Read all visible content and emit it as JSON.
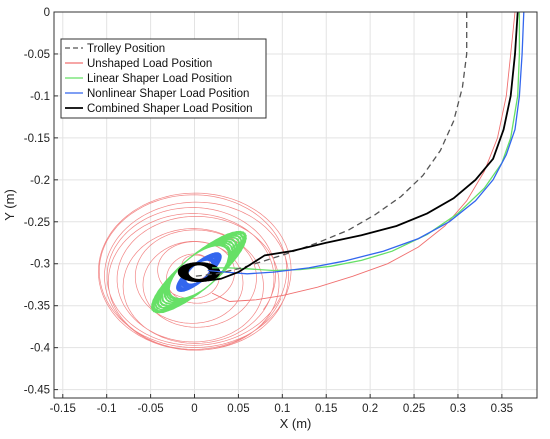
{
  "chart_data": {
    "type": "line",
    "title": "",
    "xlabel": "X (m)",
    "ylabel": "Y (m)",
    "xlim": [
      -0.16,
      0.39
    ],
    "ylim": [
      -0.46,
      0.0
    ],
    "xticks": [
      "-0.15",
      "-0.1",
      "-0.05",
      "0",
      "0.05",
      "0.1",
      "0.15",
      "0.2",
      "0.25",
      "0.3",
      "0.35"
    ],
    "yticks": [
      "0",
      "-0.05",
      "-0.1",
      "-0.15",
      "-0.2",
      "-0.25",
      "-0.3",
      "-0.35",
      "-0.4",
      "-0.45"
    ],
    "grid": true,
    "legend_position": "top-left",
    "series": [
      {
        "name": "Trolley Position",
        "color": "#555555",
        "style": "dashed",
        "x": [
          0.31,
          0.31,
          0.305,
          0.295,
          0.28,
          0.26,
          0.235,
          0.205,
          0.175,
          0.14,
          0.105,
          0.075,
          0.05,
          0.025,
          0.0
        ],
        "y": [
          0.0,
          -0.05,
          -0.09,
          -0.13,
          -0.165,
          -0.195,
          -0.22,
          -0.242,
          -0.26,
          -0.275,
          -0.288,
          -0.298,
          -0.306,
          -0.312,
          -0.315
        ]
      },
      {
        "name": "Unshaped Load Position",
        "color": "#f07070",
        "style": "solid",
        "x": [
          0.365,
          0.36,
          0.355,
          0.345,
          0.33,
          0.31,
          0.285,
          0.255,
          0.22,
          0.18,
          0.14,
          0.1,
          0.07,
          0.04,
          0.02
        ],
        "y": [
          0.0,
          -0.05,
          -0.1,
          -0.15,
          -0.19,
          -0.225,
          -0.255,
          -0.28,
          -0.3,
          -0.315,
          -0.328,
          -0.338,
          -0.343,
          -0.345,
          -0.335
        ]
      },
      {
        "name": "Linear Shaper Load Position",
        "color": "#66e066",
        "style": "solid",
        "x": [
          0.37,
          0.37,
          0.368,
          0.36,
          0.35,
          0.33,
          0.3,
          0.265,
          0.225,
          0.19,
          0.155,
          0.12,
          0.09,
          0.06,
          0.04,
          0.02
        ],
        "y": [
          0.0,
          -0.05,
          -0.1,
          -0.15,
          -0.18,
          -0.21,
          -0.24,
          -0.265,
          -0.285,
          -0.296,
          -0.303,
          -0.307,
          -0.308,
          -0.306,
          -0.305,
          -0.305
        ]
      },
      {
        "name": "Nonlinear Shaper Load Position",
        "color": "#3366ee",
        "style": "solid",
        "x": [
          0.375,
          0.373,
          0.37,
          0.365,
          0.355,
          0.34,
          0.32,
          0.29,
          0.255,
          0.215,
          0.17,
          0.13,
          0.09,
          0.06,
          0.035,
          0.015
        ],
        "y": [
          0.0,
          -0.05,
          -0.1,
          -0.14,
          -0.17,
          -0.2,
          -0.225,
          -0.25,
          -0.27,
          -0.285,
          -0.297,
          -0.305,
          -0.31,
          -0.312,
          -0.31,
          -0.308
        ]
      },
      {
        "name": "Combined Shaper Load Position",
        "color": "#000000",
        "style": "solid",
        "x": [
          0.368,
          0.365,
          0.36,
          0.352,
          0.34,
          0.32,
          0.295,
          0.265,
          0.23,
          0.19,
          0.15,
          0.11,
          0.08,
          0.065,
          0.05,
          0.03,
          0.015
        ],
        "y": [
          0.0,
          -0.05,
          -0.1,
          -0.14,
          -0.175,
          -0.2,
          -0.222,
          -0.24,
          -0.255,
          -0.266,
          -0.275,
          -0.285,
          -0.29,
          -0.3,
          -0.31,
          -0.318,
          -0.32
        ]
      }
    ],
    "oscillation_clusters": [
      {
        "series": "Unshaped Load Position",
        "center": [
          0.0,
          -0.315
        ],
        "radius_x": 0.11,
        "radius_y": 0.095
      },
      {
        "series": "Linear Shaper Load Position",
        "center": [
          0.005,
          -0.31
        ],
        "radius_x": 0.055,
        "radius_y": 0.02,
        "angle_deg": -40
      },
      {
        "series": "Nonlinear Shaper Load Position",
        "center": [
          0.005,
          -0.31
        ],
        "radius_x": 0.025,
        "radius_y": 0.01,
        "angle_deg": -40
      },
      {
        "series": "Combined Shaper Load Position",
        "center": [
          0.005,
          -0.31
        ],
        "radius_x": 0.018,
        "radius_y": 0.01
      }
    ]
  }
}
